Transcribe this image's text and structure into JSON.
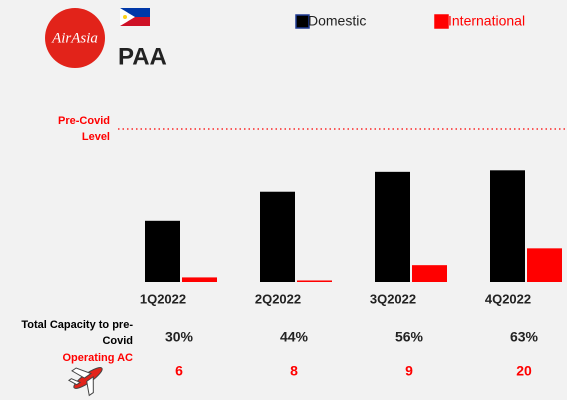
{
  "logo": {
    "brand": "AirAsia",
    "code": "PAA"
  },
  "chart_data": {
    "type": "bar",
    "categories": [
      "1Q2022",
      "2Q2022",
      "3Q2022",
      "4Q2022"
    ],
    "series": [
      {
        "name": "Domestic",
        "color": "#000000",
        "values": [
          40,
          59,
          72,
          73
        ]
      },
      {
        "name": "International",
        "color": "#ff0000",
        "values": [
          3,
          1,
          11,
          22
        ]
      }
    ],
    "reference_line": {
      "label": "Pre-Covid Level",
      "value": 100,
      "color": "#ff0000"
    },
    "rows": [
      {
        "label": "Total Capacity to pre-Covid",
        "color": "#000000",
        "values": [
          30,
          44,
          56,
          63
        ],
        "value_labels": [
          "30%",
          "44%",
          "56%",
          "63%"
        ]
      },
      {
        "label": "Operating AC",
        "color": "#ff0000",
        "values": [
          6,
          8,
          9,
          20
        ]
      }
    ]
  }
}
